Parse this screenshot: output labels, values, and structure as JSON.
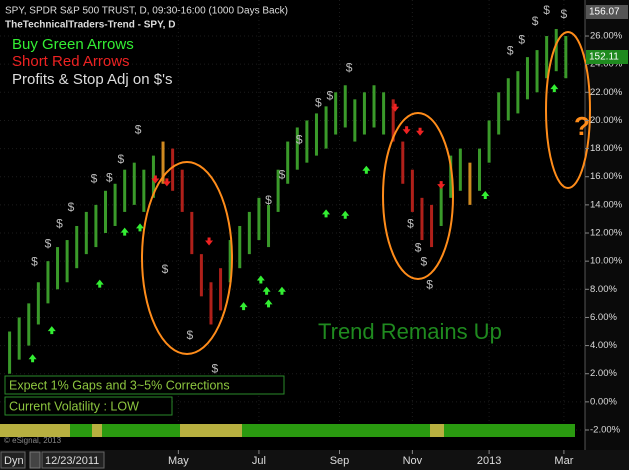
{
  "header": {
    "title": "SPY, SPDR S&P 500 TRUST, D, 09:30-16:00 (1000 Days Back)",
    "study": "TheTechnicalTraders-Trend - SPY, D"
  },
  "legend": [
    "Buy Green Arrows",
    "Short Red Arrows",
    "Profits & Stop Adj on $'s"
  ],
  "chart_data": {
    "type": "ohlc",
    "x": [
      0,
      5,
      10,
      15,
      20,
      25,
      30,
      35,
      40,
      45,
      50,
      55,
      60,
      65,
      70,
      75,
      80,
      85,
      90,
      95,
      100,
      105,
      110,
      115,
      120,
      125,
      130,
      135,
      140,
      145,
      150,
      155,
      160,
      165,
      170,
      175,
      180,
      185,
      190,
      195,
      200,
      205,
      210,
      215,
      220,
      225,
      230,
      235,
      240,
      245,
      250,
      255,
      260,
      265,
      270,
      275,
      280,
      285,
      290
    ],
    "low": [
      2,
      3,
      4,
      5.5,
      7,
      8,
      8.5,
      9.5,
      10.5,
      11,
      12,
      12.5,
      13.5,
      14,
      13.5,
      14.5,
      15.5,
      15,
      13.5,
      10.5,
      7.5,
      5.5,
      6.5,
      8.5,
      9.5,
      10.5,
      11.5,
      11,
      13.5,
      15.5,
      16.5,
      17,
      17.5,
      18,
      19,
      19.5,
      18.5,
      19,
      19.5,
      19,
      18.5,
      15.5,
      13.5,
      11.5,
      11,
      12.5,
      14.5,
      15,
      14,
      15,
      17,
      19,
      20,
      20.5,
      21.5,
      22,
      23,
      23.5,
      23
    ],
    "high": [
      5,
      6,
      7,
      8.5,
      10,
      11,
      11.5,
      12.5,
      13.5,
      14,
      15,
      15.5,
      16.5,
      17,
      16.5,
      17.5,
      18.5,
      18,
      16.5,
      13.5,
      10.5,
      8.5,
      9.5,
      11.5,
      12.5,
      13.5,
      14.5,
      14,
      16.5,
      18.5,
      19.5,
      20,
      20.5,
      21,
      22,
      22.5,
      21.5,
      22,
      22.5,
      22,
      21.5,
      18.5,
      16.5,
      14.5,
      14,
      15.5,
      17.5,
      18,
      17,
      18,
      20,
      22,
      23,
      23.5,
      24.5,
      25,
      26,
      26.5,
      26
    ],
    "colors": [
      "#3a9a2a",
      "#3a9a2a",
      "#3a9a2a",
      "#3a9a2a",
      "#3a9a2a",
      "#3a9a2a",
      "#3a9a2a",
      "#3a9a2a",
      "#3a9a2a",
      "#3a9a2a",
      "#3a9a2a",
      "#3a9a2a",
      "#3a9a2a",
      "#3a9a2a",
      "#3a9a2a",
      "#3a9a2a",
      "#d08a20",
      "#b0201a",
      "#b0201a",
      "#b0201a",
      "#b0201a",
      "#b0201a",
      "#b0201a",
      "#3a9a2a",
      "#3a9a2a",
      "#3a9a2a",
      "#3a9a2a",
      "#3a9a2a",
      "#3a9a2a",
      "#3a9a2a",
      "#3a9a2a",
      "#3a9a2a",
      "#3a9a2a",
      "#3a9a2a",
      "#3a9a2a",
      "#3a9a2a",
      "#3a9a2a",
      "#3a9a2a",
      "#3a9a2a",
      "#3a9a2a",
      "#b0201a",
      "#b0201a",
      "#b0201a",
      "#b0201a",
      "#b0201a",
      "#3a9a2a",
      "#3a9a2a",
      "#3a9a2a",
      "#d08a20",
      "#3a9a2a",
      "#3a9a2a",
      "#3a9a2a",
      "#3a9a2a",
      "#3a9a2a",
      "#3a9a2a",
      "#3a9a2a",
      "#3a9a2a",
      "#3a9a2a",
      "#3a9a2a"
    ],
    "xlim": [
      -5,
      300
    ],
    "xticks": [
      {
        "value": 88,
        "label": "May"
      },
      {
        "value": 130,
        "label": "Jul"
      },
      {
        "value": 172,
        "label": "Sep"
      },
      {
        "value": 210,
        "label": "Nov"
      },
      {
        "value": 250,
        "label": "2013"
      },
      {
        "value": 289,
        "label": "Mar"
      }
    ],
    "ylim": [
      -2.71,
      28.56
    ],
    "yticks": [
      {
        "value": 26,
        "label": "26.00%"
      },
      {
        "value": 24,
        "label": "24.00%"
      },
      {
        "value": 22,
        "label": "22.00%"
      },
      {
        "value": 20,
        "label": "20.00%"
      },
      {
        "value": 18,
        "label": "18.00%"
      },
      {
        "value": 16,
        "label": "16.00%"
      },
      {
        "value": 14,
        "label": "14.00%"
      },
      {
        "value": 12,
        "label": "12.00%"
      },
      {
        "value": 10,
        "label": "10.00%"
      },
      {
        "value": 8,
        "label": "8.00%"
      },
      {
        "value": 6,
        "label": "6.00%"
      },
      {
        "value": 4,
        "label": "4.00%"
      },
      {
        "value": 2,
        "label": "2.00%"
      },
      {
        "value": 0,
        "label": "0.00%"
      },
      {
        "value": -2,
        "label": "-2.00%"
      }
    ],
    "grid": true,
    "buy_color": "#33ee33",
    "sell_color": "#ee2222",
    "buy_signals": {
      "x": [
        12,
        22,
        47,
        60,
        68,
        122,
        131,
        134,
        135,
        142,
        165,
        175,
        186,
        248,
        284
      ],
      "y": [
        3.1,
        5.1,
        8.4,
        12.1,
        12.4,
        6.8,
        8.7,
        7.9,
        7.0,
        7.9,
        13.4,
        13.3,
        16.5,
        14.7,
        22.3
      ]
    },
    "sell_signals": {
      "x": [
        76,
        82,
        104,
        201,
        207,
        214,
        225
      ],
      "y": [
        15.8,
        15.6,
        11.4,
        20.9,
        19.3,
        19.2,
        15.4
      ]
    },
    "profit_symbol": "$",
    "profit_marks": {
      "x": [
        13,
        20,
        26,
        32,
        44,
        52,
        58,
        67,
        81,
        94,
        107,
        135,
        142,
        151,
        161,
        167,
        177,
        209,
        213,
        216,
        219,
        261,
        267,
        274,
        280,
        289
      ],
      "y": [
        9.9,
        11.2,
        12.6,
        13.8,
        15.8,
        15.9,
        17.2,
        19.3,
        9.4,
        4.7,
        2.3,
        14.3,
        16.1,
        18.6,
        21.2,
        21.7,
        23.7,
        12.6,
        10.9,
        9.9,
        8.3,
        24.9,
        25.7,
        27.0,
        27.8,
        27.5
      ]
    },
    "annotation": "Trend Remains Up",
    "question": "?",
    "price_labels": [
      "156.07",
      "152.11"
    ]
  },
  "notes": [
    "Expect 1% Gaps and 3~5% Corrections",
    "Current Volatility : LOW"
  ],
  "footer": {
    "copyright": "© eSignal, 2013",
    "mode": "Dyn",
    "start_date": "12/23/2011"
  }
}
